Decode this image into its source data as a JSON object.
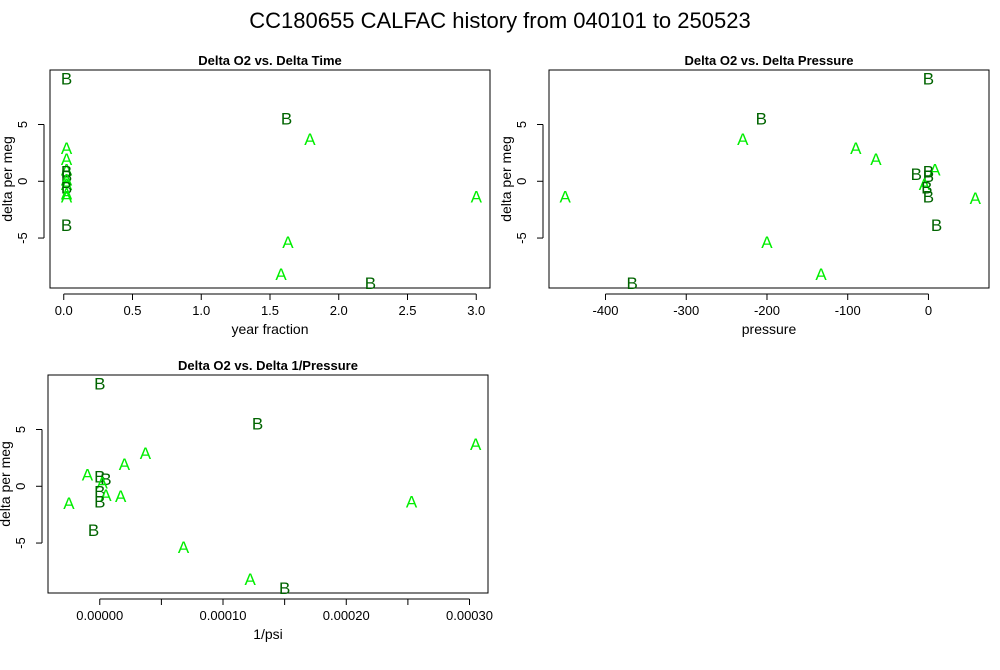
{
  "title": "CC180655   CALFAC history from  040101  to  250523",
  "colors": {
    "A": "#00ee00",
    "B": "#006400",
    "axis": "#000000"
  },
  "chart_data": [
    {
      "type": "scatter",
      "title": "Delta O2 vs. Delta Time",
      "xlabel": "year fraction",
      "ylabel": "delta per meg",
      "xlim": [
        -0.1,
        3.1
      ],
      "ylim": [
        -9.4,
        9.8
      ],
      "xticks": [
        0.0,
        0.5,
        1.0,
        1.5,
        2.0,
        2.5,
        3.0
      ],
      "xtick_labels": [
        "0.0",
        "0.5",
        "1.0",
        "1.5",
        "2.0",
        "2.5",
        "3.0"
      ],
      "yticks": [
        -5,
        0,
        5
      ],
      "ytick_labels": [
        "-5",
        "0",
        "5"
      ],
      "points": [
        {
          "x": 0.02,
          "y": 9.0,
          "label": "B"
        },
        {
          "x": 0.02,
          "y": 2.9,
          "label": "A"
        },
        {
          "x": 0.02,
          "y": 1.9,
          "label": "A"
        },
        {
          "x": 0.02,
          "y": 1.0,
          "label": "A"
        },
        {
          "x": 0.02,
          "y": 0.8,
          "label": "B"
        },
        {
          "x": 0.02,
          "y": 0.4,
          "label": "B"
        },
        {
          "x": 0.02,
          "y": 0.1,
          "label": "A"
        },
        {
          "x": 0.02,
          "y": -0.3,
          "label": "A"
        },
        {
          "x": 0.02,
          "y": -0.6,
          "label": "B"
        },
        {
          "x": 0.02,
          "y": -1.1,
          "label": "A"
        },
        {
          "x": 0.02,
          "y": -1.4,
          "label": "A"
        },
        {
          "x": 0.02,
          "y": -3.9,
          "label": "B"
        },
        {
          "x": 1.62,
          "y": 5.5,
          "label": "B"
        },
        {
          "x": 1.79,
          "y": 3.7,
          "label": "A"
        },
        {
          "x": 1.63,
          "y": -5.4,
          "label": "A"
        },
        {
          "x": 1.58,
          "y": -8.2,
          "label": "A"
        },
        {
          "x": 2.23,
          "y": -9.0,
          "label": "B"
        },
        {
          "x": 3.0,
          "y": -1.4,
          "label": "A"
        }
      ]
    },
    {
      "type": "scatter",
      "title": "Delta O2 vs. Delta Pressure",
      "xlabel": "pressure",
      "ylabel": "delta per meg",
      "xlim": [
        -470,
        75
      ],
      "ylim": [
        -9.4,
        9.8
      ],
      "xticks": [
        -400,
        -300,
        -200,
        -100,
        0
      ],
      "xtick_labels": [
        "-400",
        "-300",
        "-200",
        "-100",
        "0"
      ],
      "yticks": [
        -5,
        0,
        5
      ],
      "ytick_labels": [
        "-5",
        "0",
        "5"
      ],
      "points": [
        {
          "x": 0,
          "y": 9.0,
          "label": "B"
        },
        {
          "x": -207,
          "y": 5.5,
          "label": "B"
        },
        {
          "x": -230,
          "y": 3.7,
          "label": "A"
        },
        {
          "x": -90,
          "y": 2.9,
          "label": "A"
        },
        {
          "x": -65,
          "y": 1.9,
          "label": "A"
        },
        {
          "x": -15,
          "y": 0.6,
          "label": "B"
        },
        {
          "x": 8,
          "y": 1.0,
          "label": "A"
        },
        {
          "x": 0,
          "y": 0.8,
          "label": "B"
        },
        {
          "x": 0,
          "y": 0.4,
          "label": "B"
        },
        {
          "x": -5,
          "y": -0.3,
          "label": "A"
        },
        {
          "x": -2,
          "y": -0.6,
          "label": "B"
        },
        {
          "x": 0,
          "y": -1.4,
          "label": "B"
        },
        {
          "x": -450,
          "y": -1.4,
          "label": "A"
        },
        {
          "x": 58,
          "y": -1.5,
          "label": "A"
        },
        {
          "x": 10,
          "y": -3.9,
          "label": "B"
        },
        {
          "x": -200,
          "y": -5.4,
          "label": "A"
        },
        {
          "x": -133,
          "y": -8.2,
          "label": "A"
        },
        {
          "x": -367,
          "y": -9.0,
          "label": "B"
        }
      ]
    },
    {
      "type": "scatter",
      "title": "Delta O2 vs. Delta 1/Pressure",
      "xlabel": "1/psi",
      "ylabel": "delta per meg",
      "xlim": [
        -4.2e-05,
        0.000315
      ],
      "ylim": [
        -9.4,
        9.8
      ],
      "xticks": [
        0.0,
        5e-05,
        0.0001,
        0.00015,
        0.0002,
        0.00025,
        0.0003
      ],
      "xtick_labels": [
        "0.00000",
        "",
        "0.00010",
        "",
        "0.00020",
        "",
        "0.00030"
      ],
      "yticks": [
        -5,
        0,
        5
      ],
      "ytick_labels": [
        "-5",
        "0",
        "5"
      ],
      "points": [
        {
          "x": 0.0,
          "y": 9.0,
          "label": "B"
        },
        {
          "x": 0.000128,
          "y": 5.5,
          "label": "B"
        },
        {
          "x": 0.000305,
          "y": 3.7,
          "label": "A"
        },
        {
          "x": 3.7e-05,
          "y": 2.9,
          "label": "A"
        },
        {
          "x": 2e-05,
          "y": 1.9,
          "label": "A"
        },
        {
          "x": -1e-05,
          "y": 1.0,
          "label": "A"
        },
        {
          "x": 0.0,
          "y": 0.8,
          "label": "B"
        },
        {
          "x": 5e-06,
          "y": 0.6,
          "label": "B"
        },
        {
          "x": 2e-06,
          "y": 0.3,
          "label": "A"
        },
        {
          "x": 0.0,
          "y": -0.5,
          "label": "B"
        },
        {
          "x": 5e-06,
          "y": -0.8,
          "label": "A"
        },
        {
          "x": 1.7e-05,
          "y": -0.9,
          "label": "A"
        },
        {
          "x": 0.0,
          "y": -1.4,
          "label": "B"
        },
        {
          "x": -2.5e-05,
          "y": -1.5,
          "label": "A"
        },
        {
          "x": 0.000253,
          "y": -1.4,
          "label": "A"
        },
        {
          "x": -5e-06,
          "y": -3.9,
          "label": "B"
        },
        {
          "x": 6.8e-05,
          "y": -5.4,
          "label": "A"
        },
        {
          "x": 0.000122,
          "y": -8.2,
          "label": "A"
        },
        {
          "x": 0.00015,
          "y": -9.0,
          "label": "B"
        }
      ]
    }
  ]
}
